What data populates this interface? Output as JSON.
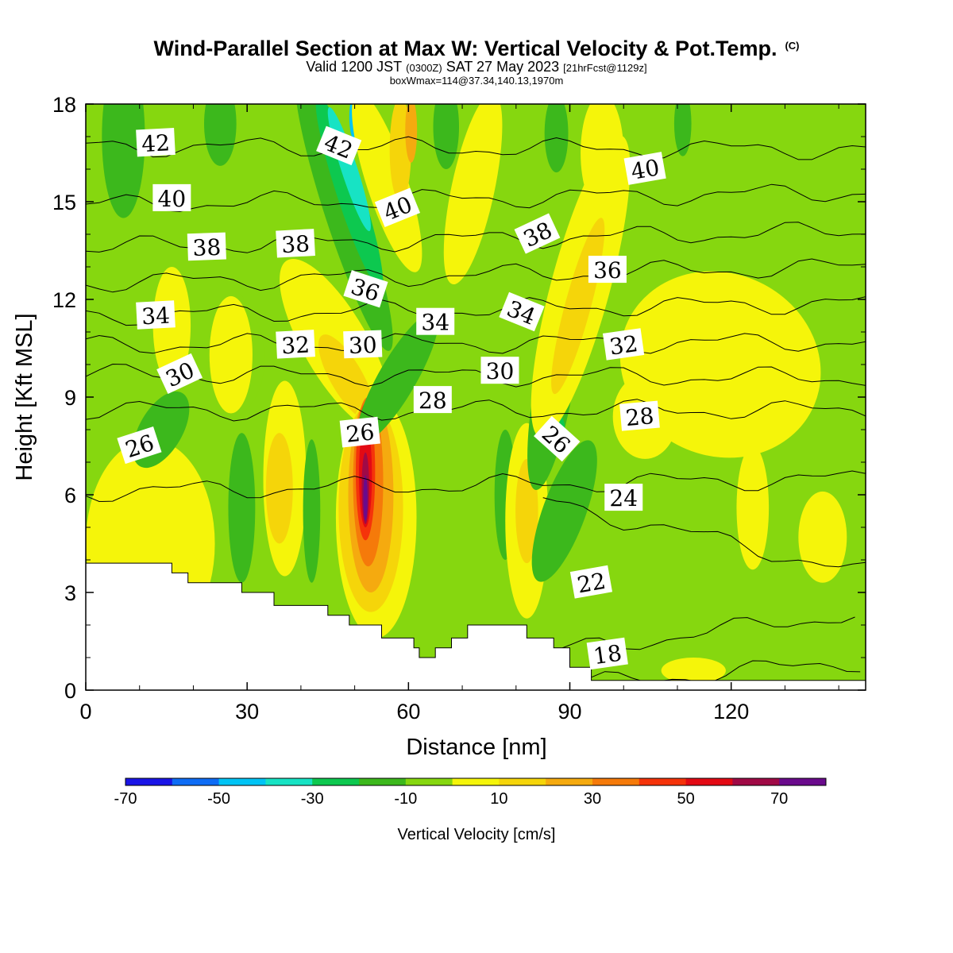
{
  "title": {
    "main": "Wind-Parallel Section at Max W: Vertical Velocity & Pot.Temp.",
    "copyright": "(C)"
  },
  "subtitle": {
    "valid_prefix": "Valid 1200 JST",
    "utc": "(0300Z)",
    "date": "SAT 27 May 2023",
    "forecast": "[21hrFcst@1129z]"
  },
  "box_info": "boxWmax=114@37.34,140.13,1970m",
  "chart_data": {
    "type": "heatmap",
    "xlabel": "Distance [nm]",
    "ylabel": "Height [Kft MSL]",
    "xlim": [
      0,
      145
    ],
    "ylim": [
      0,
      18
    ],
    "x_ticks": [
      0,
      30,
      60,
      90,
      120
    ],
    "y_ticks": [
      0,
      3,
      6,
      9,
      12,
      15,
      18
    ],
    "background_class": "-10",
    "colorbar": {
      "label": "Vertical Velocity [cm/s]",
      "bounds": [
        -70,
        -60,
        -50,
        -40,
        -30,
        -20,
        -10,
        0,
        10,
        20,
        30,
        40,
        50,
        60,
        70,
        80
      ],
      "colors": [
        "#1a14e6",
        "#0e6cf5",
        "#00c4f5",
        "#17e3c4",
        "#0dc84f",
        "#3cb81c",
        "#86d70f",
        "#f5f50a",
        "#f5d50a",
        "#f5aa0f",
        "#f57a0a",
        "#f5330a",
        "#e30a14",
        "#a00a46",
        "#6a0a8c"
      ],
      "tick_labels": [
        -70,
        -50,
        -30,
        -10,
        10,
        30,
        50,
        70
      ]
    },
    "terrain_kft": [
      [
        0,
        3.9
      ],
      [
        16,
        3.9
      ],
      [
        16,
        3.6
      ],
      [
        19,
        3.6
      ],
      [
        19,
        3.3
      ],
      [
        29,
        3.3
      ],
      [
        29,
        3.0
      ],
      [
        35,
        3.0
      ],
      [
        35,
        2.6
      ],
      [
        45,
        2.6
      ],
      [
        45,
        2.3
      ],
      [
        49,
        2.3
      ],
      [
        49,
        2.0
      ],
      [
        55,
        2.0
      ],
      [
        55,
        1.6
      ],
      [
        61,
        1.6
      ],
      [
        61,
        1.3
      ],
      [
        62,
        1.3
      ],
      [
        62,
        1.0
      ],
      [
        65,
        1.0
      ],
      [
        65,
        1.3
      ],
      [
        68,
        1.3
      ],
      [
        68,
        1.6
      ],
      [
        71,
        1.6
      ],
      [
        71,
        2.0
      ],
      [
        82,
        2.0
      ],
      [
        82,
        1.6
      ],
      [
        87,
        1.6
      ],
      [
        87,
        1.3
      ],
      [
        90,
        1.3
      ],
      [
        90,
        0.7
      ],
      [
        94,
        0.7
      ],
      [
        94,
        0.3
      ],
      [
        145,
        0.3
      ]
    ],
    "vv_regions": [
      {
        "v": 5,
        "cx": 12,
        "cy": 4.5,
        "rx": 12,
        "ry": 3.2
      },
      {
        "v": -5,
        "cx": 24,
        "cy": 10.5,
        "rx": 9,
        "ry": 2.2,
        "rot": 12
      },
      {
        "v": 5,
        "cx": 16,
        "cy": 11.2,
        "rx": 3.5,
        "ry": 1.8
      },
      {
        "v": 5,
        "cx": 27,
        "cy": 10.3,
        "rx": 4,
        "ry": 1.8
      },
      {
        "v": -15,
        "cx": 14,
        "cy": 8.0,
        "rx": 4,
        "ry": 1.3,
        "rot": -30
      },
      {
        "v": -15,
        "cx": 29,
        "cy": 5.6,
        "rx": 2.5,
        "ry": 2.3
      },
      {
        "v": 5,
        "cx": 37,
        "cy": 6.5,
        "rx": 4,
        "ry": 3.0
      },
      {
        "v": 15,
        "cx": 36,
        "cy": 6.2,
        "rx": 2.5,
        "ry": 1.7
      },
      {
        "v": 5,
        "cx": 21,
        "cy": 5.2,
        "rx": 1.8,
        "ry": 1.2
      },
      {
        "v": -15,
        "cx": 42,
        "cy": 5.5,
        "rx": 1.6,
        "ry": 2.2
      },
      {
        "v": -15,
        "cx": 7,
        "cy": 17.0,
        "rx": 4,
        "ry": 2.5
      },
      {
        "v": -15,
        "cx": 25,
        "cy": 17.4,
        "rx": 3,
        "ry": 1.3
      },
      {
        "v": -15,
        "cx": 48,
        "cy": 14.7,
        "rx": 3.6,
        "ry": 4.5,
        "rot": 18
      },
      {
        "v": -25,
        "cx": 49,
        "cy": 15.3,
        "rx": 2.4,
        "ry": 3.1,
        "rot": 18
      },
      {
        "v": -35,
        "cx": 49,
        "cy": 16.0,
        "rx": 1.5,
        "ry": 2.0,
        "rot": 18
      },
      {
        "v": -45,
        "cx": 50,
        "cy": 17.6,
        "rx": 1.0,
        "ry": 0.7
      },
      {
        "v": 5,
        "cx": 46.5,
        "cy": 10.6,
        "rx": 6,
        "ry": 3.0,
        "rot": 30
      },
      {
        "v": 15,
        "cx": 48.5,
        "cy": 9.6,
        "rx": 3.0,
        "ry": 1.5,
        "rot": 30
      },
      {
        "v": 5,
        "cx": 56,
        "cy": 15.6,
        "rx": 3.8,
        "ry": 2.9,
        "rot": 18
      },
      {
        "v": 15,
        "cx": 58.5,
        "cy": 16.6,
        "rx": 2.0,
        "ry": 1.6
      },
      {
        "v": 25,
        "cx": 60.5,
        "cy": 17.2,
        "rx": 1.1,
        "ry": 1.0
      },
      {
        "v": 5,
        "cx": 54,
        "cy": 5.3,
        "rx": 7.5,
        "ry": 3.7
      },
      {
        "v": 15,
        "cx": 53,
        "cy": 5.6,
        "rx": 6.0,
        "ry": 3.2
      },
      {
        "v": 25,
        "cx": 53,
        "cy": 6.0,
        "rx": 4.2,
        "ry": 3.0
      },
      {
        "v": 35,
        "cx": 52.5,
        "cy": 6.4,
        "rx": 2.8,
        "ry": 2.6
      },
      {
        "v": 45,
        "cx": 52,
        "cy": 6.7,
        "rx": 1.8,
        "ry": 2.1
      },
      {
        "v": 55,
        "cx": 52,
        "cy": 6.6,
        "rx": 1.2,
        "ry": 1.6
      },
      {
        "v": 65,
        "cx": 52,
        "cy": 6.2,
        "rx": 0.7,
        "ry": 1.1
      },
      {
        "v": 75,
        "cx": 52,
        "cy": 5.9,
        "rx": 0.4,
        "ry": 0.7
      },
      {
        "v": -15,
        "cx": 58,
        "cy": 9.6,
        "rx": 3.5,
        "ry": 2.3,
        "rot": -30
      },
      {
        "v": -15,
        "cx": 67,
        "cy": 17.3,
        "rx": 2.4,
        "ry": 1.3
      },
      {
        "v": -15,
        "cx": 78,
        "cy": 6.0,
        "rx": 2.0,
        "ry": 2.0
      },
      {
        "v": 5,
        "cx": 82,
        "cy": 5.2,
        "rx": 4.0,
        "ry": 3.0
      },
      {
        "v": 15,
        "cx": 82,
        "cy": 5.5,
        "rx": 2.1,
        "ry": 1.6
      },
      {
        "v": 5,
        "cx": 72,
        "cy": 15.4,
        "rx": 4.0,
        "ry": 3.0,
        "rot": -12
      },
      {
        "v": -15,
        "cx": 87,
        "cy": 9.3,
        "rx": 3.6,
        "ry": 3.2,
        "rot": -10
      },
      {
        "v": -15,
        "cx": 89,
        "cy": 5.5,
        "rx": 4.0,
        "ry": 2.3,
        "rot": -20
      },
      {
        "v": -25,
        "cx": 88.3,
        "cy": 7.8,
        "rx": 0.9,
        "ry": 0.6
      },
      {
        "v": 5,
        "cx": 92,
        "cy": 12.4,
        "rx": 5.5,
        "ry": 4.8,
        "rot": -15
      },
      {
        "v": 15,
        "cx": 91.5,
        "cy": 11.8,
        "rx": 2.4,
        "ry": 2.8,
        "rot": -15
      },
      {
        "v": -15,
        "cx": 87.5,
        "cy": 17.1,
        "rx": 2.2,
        "ry": 1.2
      },
      {
        "v": 5,
        "cx": 96,
        "cy": 16.5,
        "rx": 4.0,
        "ry": 1.8
      },
      {
        "v": 5,
        "cx": 118,
        "cy": 10.0,
        "rx": 19,
        "ry": 2.8,
        "rot": -25
      },
      {
        "v": 5,
        "cx": 104,
        "cy": 8.4,
        "rx": 6.0,
        "ry": 1.3
      },
      {
        "v": 5,
        "cx": 124,
        "cy": 5.6,
        "rx": 3.0,
        "ry": 1.9
      },
      {
        "v": 5,
        "cx": 137,
        "cy": 4.7,
        "rx": 4.5,
        "ry": 1.4
      },
      {
        "v": 5,
        "cx": 113,
        "cy": 0.6,
        "rx": 6.0,
        "ry": 0.4
      },
      {
        "v": -15,
        "cx": 111,
        "cy": 17.4,
        "rx": 1.6,
        "ry": 1.0
      }
    ],
    "theta_contours": [
      {
        "label": "18",
        "y0": 0.2,
        "y1": 0.9,
        "x_start": 94
      },
      {
        "label": "22",
        "y0": 1.2,
        "y1": 2.4,
        "x_start": 88
      },
      {
        "label": "24",
        "y0": 5.8,
        "y1": 3.6,
        "x_start": 85
      },
      {
        "label": "26",
        "y0": 6.1,
        "y1": 6.5
      },
      {
        "label": "28",
        "y0": 8.6,
        "y1": 8.6
      },
      {
        "label": "30",
        "y0": 9.7,
        "y1": 9.6
      },
      {
        "label": "32",
        "y0": 10.6,
        "y1": 10.7
      },
      {
        "label": "34",
        "y0": 11.5,
        "y1": 11.9
      },
      {
        "label": "36",
        "y0": 12.5,
        "y1": 13.0
      },
      {
        "label": "38",
        "y0": 13.6,
        "y1": 14.1
      },
      {
        "label": "40",
        "y0": 14.9,
        "y1": 15.3
      },
      {
        "label": "42",
        "y0": 16.7,
        "y1": 16.6
      }
    ],
    "theta_labels": [
      {
        "text": "42",
        "x": 13,
        "y": 16.8,
        "rot": -3
      },
      {
        "text": "42",
        "x": 47,
        "y": 16.7,
        "rot": 22
      },
      {
        "text": "40",
        "x": 16,
        "y": 15.1,
        "rot": 0
      },
      {
        "text": "40",
        "x": 58,
        "y": 14.8,
        "rot": -22
      },
      {
        "text": "40",
        "x": 104,
        "y": 16.0,
        "rot": -10
      },
      {
        "text": "38",
        "x": 22.5,
        "y": 13.6,
        "rot": -2
      },
      {
        "text": "38",
        "x": 39,
        "y": 13.7,
        "rot": -3
      },
      {
        "text": "38",
        "x": 84,
        "y": 14.0,
        "rot": -25
      },
      {
        "text": "36",
        "x": 52,
        "y": 12.3,
        "rot": 18
      },
      {
        "text": "36",
        "x": 97,
        "y": 12.9,
        "rot": 0
      },
      {
        "text": "34",
        "x": 13,
        "y": 11.5,
        "rot": -3
      },
      {
        "text": "34",
        "x": 65,
        "y": 11.3,
        "rot": 0
      },
      {
        "text": "34",
        "x": 81,
        "y": 11.6,
        "rot": 22
      },
      {
        "text": "32",
        "x": 39,
        "y": 10.6,
        "rot": -3
      },
      {
        "text": "32",
        "x": 100,
        "y": 10.6,
        "rot": -8
      },
      {
        "text": "30",
        "x": 17.5,
        "y": 9.7,
        "rot": -25
      },
      {
        "text": "30",
        "x": 51.5,
        "y": 10.6,
        "rot": -2
      },
      {
        "text": "30",
        "x": 77,
        "y": 9.8,
        "rot": 0
      },
      {
        "text": "28",
        "x": 64.5,
        "y": 8.9,
        "rot": 0
      },
      {
        "text": "28",
        "x": 103,
        "y": 8.4,
        "rot": -5
      },
      {
        "text": "26",
        "x": 10,
        "y": 7.5,
        "rot": -18
      },
      {
        "text": "26",
        "x": 51,
        "y": 7.9,
        "rot": -6
      },
      {
        "text": "26",
        "x": 87.5,
        "y": 7.7,
        "rot": 42
      },
      {
        "text": "24",
        "x": 100,
        "y": 5.9,
        "rot": 0
      },
      {
        "text": "22",
        "x": 94,
        "y": 3.3,
        "rot": -10
      },
      {
        "text": "18",
        "x": 97,
        "y": 1.1,
        "rot": -8
      }
    ]
  }
}
